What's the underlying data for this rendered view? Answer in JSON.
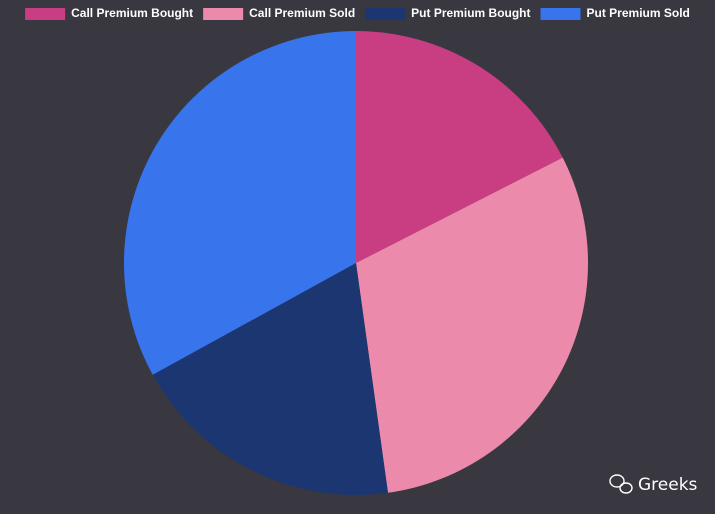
{
  "chart_data": {
    "type": "pie",
    "categories": [
      "Call Premium Bought",
      "Call Premium Sold",
      "Put Premium Bought",
      "Put Premium Sold"
    ],
    "values": [
      17.5,
      30.3,
      19.2,
      33.0
    ],
    "colors": [
      "#c93d82",
      "#ec8aab",
      "#1b3670",
      "#3874ec"
    ],
    "legend": "top",
    "watermark": "Greeks"
  }
}
